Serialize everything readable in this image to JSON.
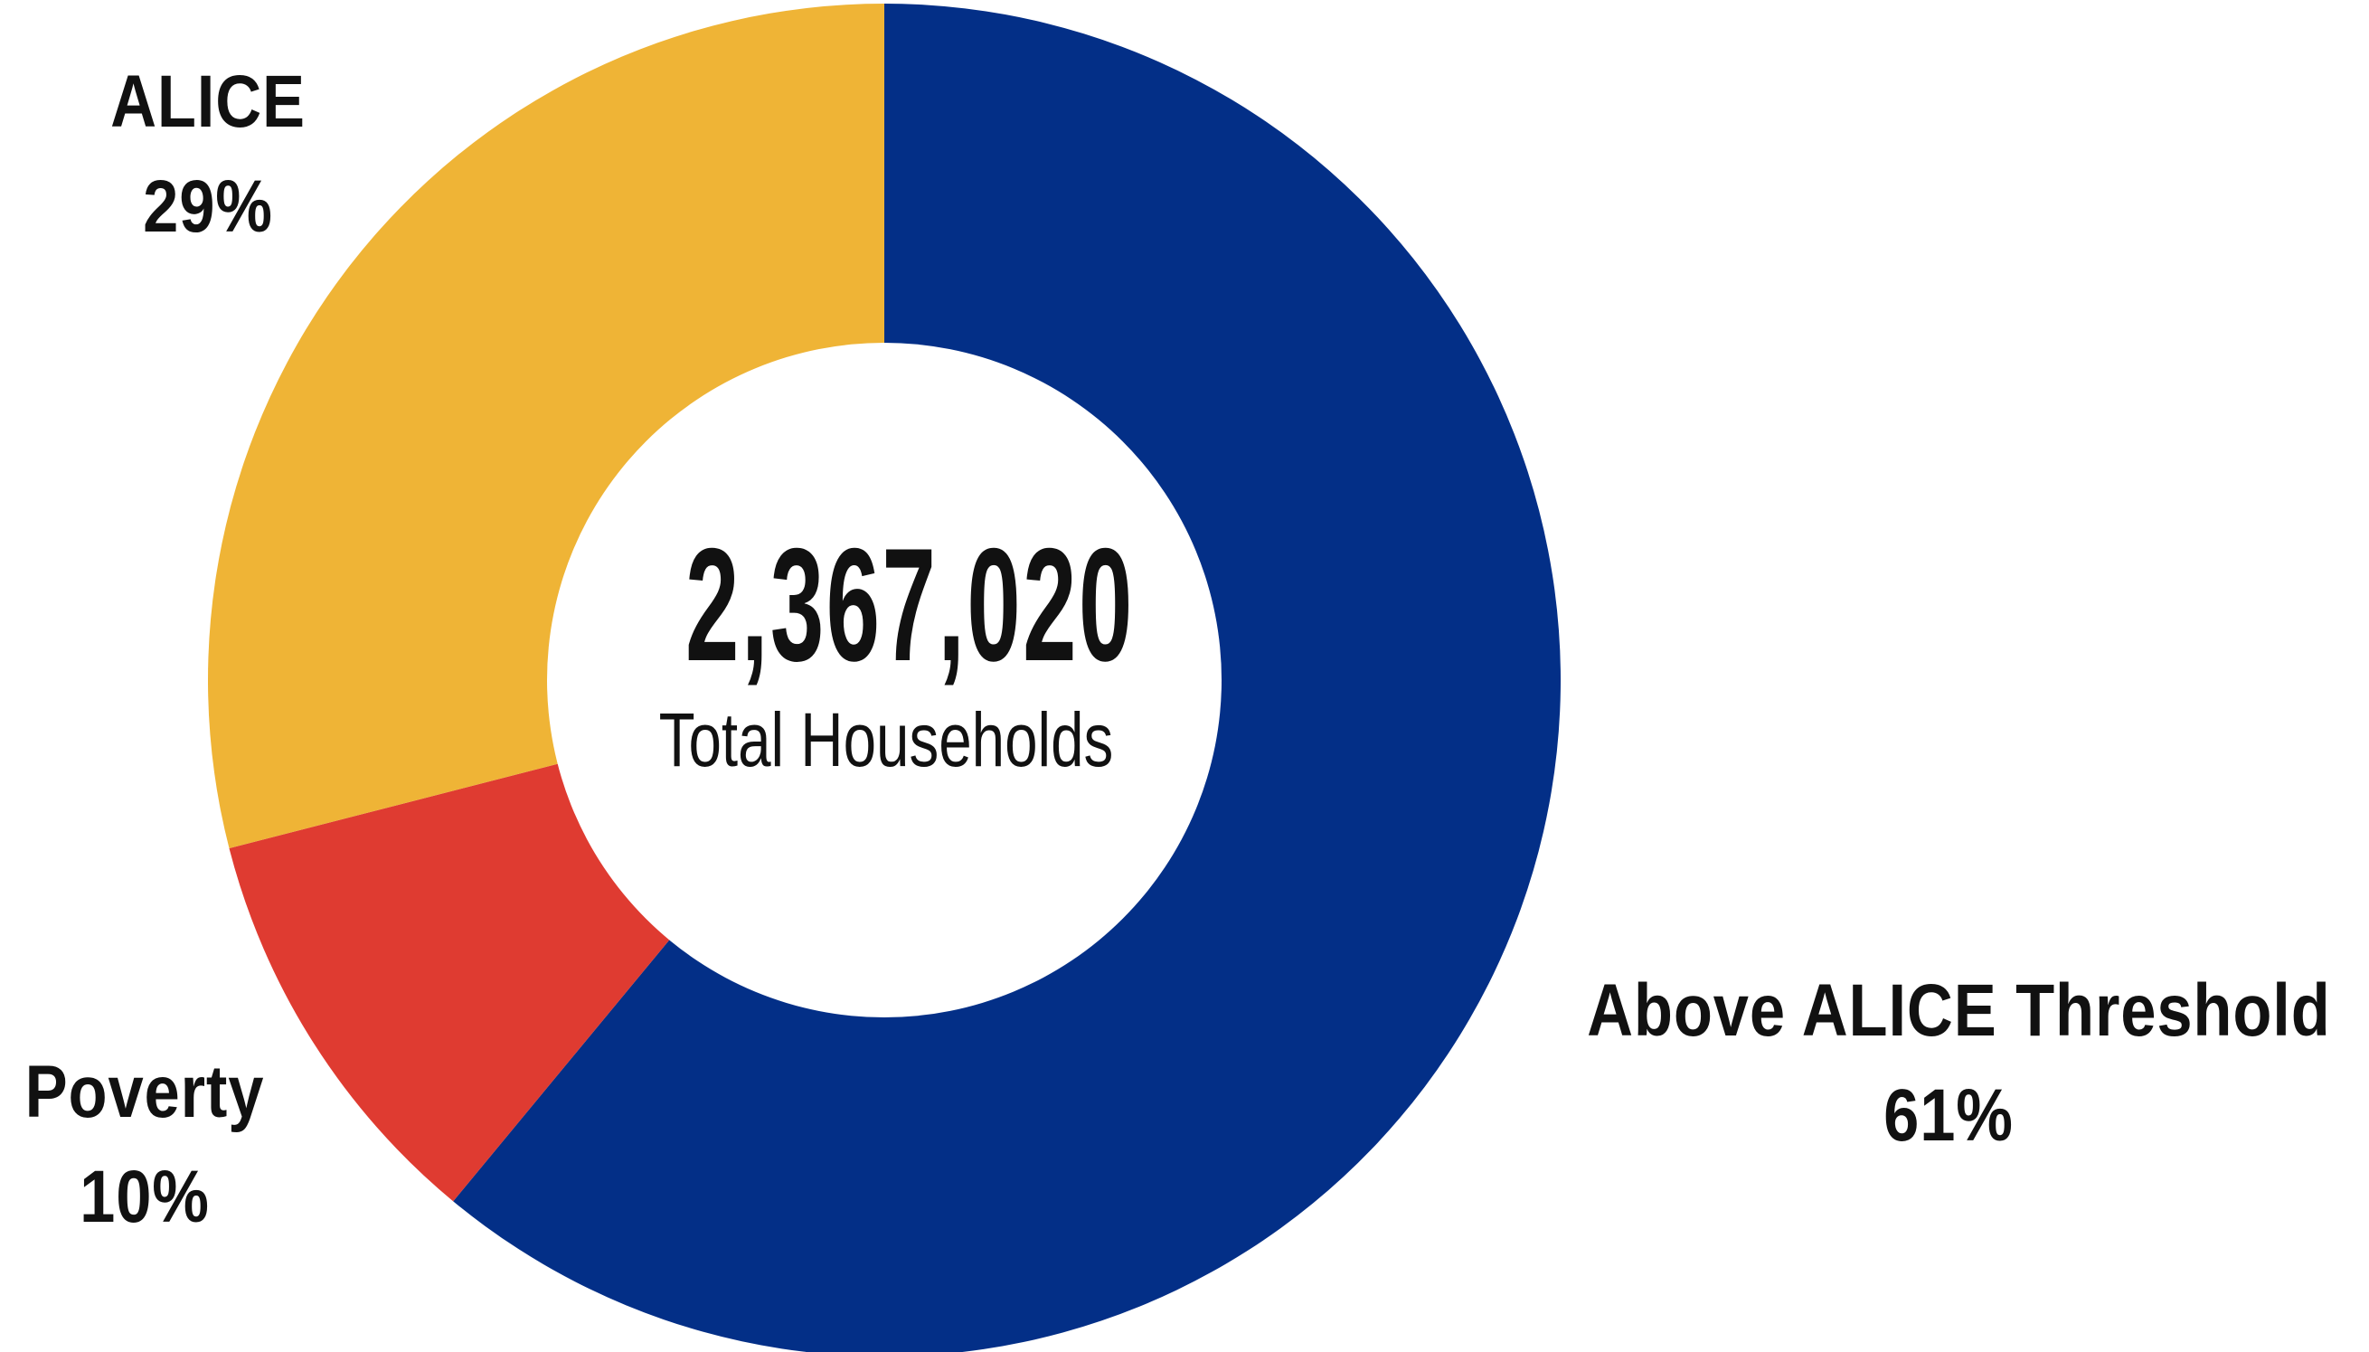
{
  "chart_data": {
    "type": "pie",
    "donut": true,
    "center_value": "2,367,020",
    "center_label": "Total Households",
    "slices": [
      {
        "name": "Above ALICE Threshold",
        "label": "61%",
        "value": 61,
        "color": "#032f87"
      },
      {
        "name": "Poverty",
        "label": "10%",
        "value": 10,
        "color": "#df3b31"
      },
      {
        "name": "ALICE",
        "label": "29%",
        "value": 29,
        "color": "#efb436"
      }
    ],
    "start_angle_deg": 0,
    "direction": "clockwise"
  }
}
